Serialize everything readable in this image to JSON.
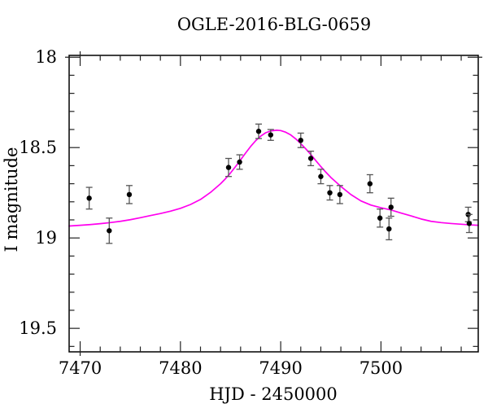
{
  "figure": {
    "background": "#ffffff",
    "frame_color": "#000000",
    "tick_color": "#222222"
  },
  "chart_data": {
    "type": "scatter",
    "title": "OGLE-2016-BLG-0659",
    "xlabel": "HJD - 2450000",
    "ylabel": "I magnitude",
    "xlim": [
      7468.9,
      7509.7
    ],
    "ylim": [
      17.99,
      19.63
    ],
    "y_axis_direction": "inverted-magnitude-scale-brighter-up",
    "grid": false,
    "legend": "none",
    "x_ticks": {
      "major": [
        {
          "value": 7470,
          "label": "7470"
        },
        {
          "value": 7480,
          "label": "7480"
        },
        {
          "value": 7490,
          "label": "7490"
        },
        {
          "value": 7500,
          "label": "7500"
        }
      ],
      "minor_step": 2
    },
    "y_ticks": {
      "major": [
        {
          "value": 18,
          "label": "18"
        },
        {
          "value": 18.5,
          "label": "18.5"
        },
        {
          "value": 19,
          "label": "19"
        },
        {
          "value": 19.5,
          "label": "19.5"
        }
      ],
      "minor_step": 0.1
    },
    "series": [
      {
        "name": "photometry-points",
        "type": "scatter-errorbar",
        "marker": "filled-circle",
        "marker_color": "#000000",
        "error_bar_color": "#555555",
        "points": [
          {
            "x": 7470.9,
            "y": 18.78,
            "err": 0.06
          },
          {
            "x": 7472.9,
            "y": 18.96,
            "err": 0.07
          },
          {
            "x": 7474.9,
            "y": 18.76,
            "err": 0.05
          },
          {
            "x": 7484.8,
            "y": 18.61,
            "err": 0.05
          },
          {
            "x": 7485.9,
            "y": 18.58,
            "err": 0.04
          },
          {
            "x": 7487.8,
            "y": 18.41,
            "err": 0.04
          },
          {
            "x": 7489.0,
            "y": 18.43,
            "err": 0.03
          },
          {
            "x": 7492.0,
            "y": 18.46,
            "err": 0.04
          },
          {
            "x": 7493.0,
            "y": 18.56,
            "err": 0.04
          },
          {
            "x": 7494.0,
            "y": 18.66,
            "err": 0.04
          },
          {
            "x": 7494.9,
            "y": 18.75,
            "err": 0.04
          },
          {
            "x": 7495.9,
            "y": 18.76,
            "err": 0.05
          },
          {
            "x": 7498.9,
            "y": 18.7,
            "err": 0.05
          },
          {
            "x": 7499.9,
            "y": 18.89,
            "err": 0.05
          },
          {
            "x": 7500.8,
            "y": 18.95,
            "err": 0.06
          },
          {
            "x": 7501.0,
            "y": 18.83,
            "err": 0.05
          },
          {
            "x": 7508.7,
            "y": 18.87,
            "err": 0.04
          },
          {
            "x": 7508.8,
            "y": 18.92,
            "err": 0.05
          }
        ]
      },
      {
        "name": "microlensing-model-curve",
        "type": "line",
        "color": "#ff00ee",
        "line_width": 1.7,
        "peak": {
          "x": 7489.6,
          "y": 18.4
        },
        "baseline_mag": 18.93,
        "points": [
          [
            7468.9,
            18.934
          ],
          [
            7470,
            18.93
          ],
          [
            7471,
            18.926
          ],
          [
            7472,
            18.921
          ],
          [
            7473,
            18.915
          ],
          [
            7474,
            18.908
          ],
          [
            7475,
            18.899
          ],
          [
            7476,
            18.888
          ],
          [
            7477,
            18.876
          ],
          [
            7478,
            18.865
          ],
          [
            7479,
            18.852
          ],
          [
            7480,
            18.836
          ],
          [
            7481,
            18.815
          ],
          [
            7482,
            18.787
          ],
          [
            7483,
            18.748
          ],
          [
            7484,
            18.7
          ],
          [
            7484.5,
            18.672
          ],
          [
            7485,
            18.64
          ],
          [
            7485.5,
            18.605
          ],
          [
            7486,
            18.568
          ],
          [
            7486.5,
            18.53
          ],
          [
            7487,
            18.494
          ],
          [
            7487.5,
            18.462
          ],
          [
            7488,
            18.437
          ],
          [
            7488.5,
            18.418
          ],
          [
            7489,
            18.408
          ],
          [
            7489.6,
            18.404
          ],
          [
            7490,
            18.406
          ],
          [
            7490.5,
            18.415
          ],
          [
            7491,
            18.43
          ],
          [
            7491.5,
            18.452
          ],
          [
            7492,
            18.478
          ],
          [
            7492.5,
            18.507
          ],
          [
            7493,
            18.538
          ],
          [
            7493.5,
            18.572
          ],
          [
            7494,
            18.605
          ],
          [
            7494.5,
            18.636
          ],
          [
            7495,
            18.665
          ],
          [
            7496,
            18.715
          ],
          [
            7497,
            18.76
          ],
          [
            7498,
            18.795
          ],
          [
            7499,
            18.818
          ],
          [
            7500,
            18.833
          ],
          [
            7501,
            18.845
          ],
          [
            7502,
            18.862
          ],
          [
            7503,
            18.878
          ],
          [
            7504,
            18.895
          ],
          [
            7505,
            18.908
          ],
          [
            7506,
            18.915
          ],
          [
            7507,
            18.92
          ],
          [
            7508,
            18.924
          ],
          [
            7509,
            18.928
          ],
          [
            7509.7,
            18.93
          ]
        ]
      }
    ]
  }
}
